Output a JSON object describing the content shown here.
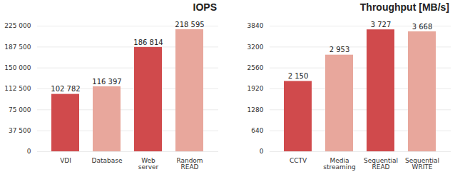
{
  "chart_data": [
    {
      "type": "bar",
      "title": "IOPS",
      "categories": [
        "VDI",
        "Database",
        "Web server",
        "Random READ"
      ],
      "values": [
        102782,
        116397,
        186814,
        218595
      ],
      "value_labels": [
        "102 782",
        "116 397",
        "186 814",
        "218 595"
      ],
      "colors": [
        "#d04a4c",
        "#e8a79c",
        "#d04a4c",
        "#e8a79c"
      ],
      "ylim": [
        0,
        225000
      ],
      "yticks": [
        0,
        {
          "value": 37500,
          "label": "37 500"
        },
        {
          "value": 75000,
          "label": "75 000"
        },
        {
          "value": 112500,
          "label": "112 500"
        },
        {
          "value": 150000,
          "label": "150 000"
        },
        {
          "value": 187500,
          "label": "187 500"
        },
        {
          "value": 225000,
          "label": "225 000"
        }
      ],
      "grid": true,
      "data_labels": true
    },
    {
      "type": "bar",
      "title": "Throughput [MB/s]",
      "categories": [
        "CCTV",
        "Media streaming",
        "Sequential READ",
        "Sequential WRITE"
      ],
      "values": [
        2150,
        2953,
        3727,
        3668
      ],
      "value_labels": [
        "2 150",
        "2 953",
        "3 727",
        "3 668"
      ],
      "colors": [
        "#d04a4c",
        "#e8a79c",
        "#d04a4c",
        "#e8a79c"
      ],
      "ylim": [
        0,
        3840
      ],
      "yticks": [
        0,
        640,
        1280,
        1920,
        2560,
        3200,
        3840
      ],
      "grid": true,
      "data_labels": true
    }
  ]
}
